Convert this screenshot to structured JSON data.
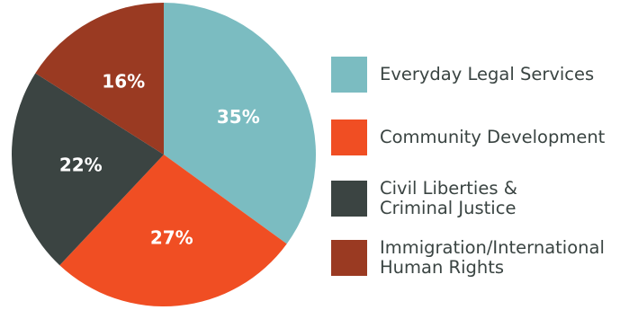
{
  "chart_data": {
    "type": "pie",
    "categories": [
      "Everyday Legal Services",
      "Community Development",
      "Civil Liberties &\nCriminal Justice",
      "Immigration/International\nHuman Rights"
    ],
    "values": [
      35,
      27,
      22,
      16
    ],
    "labels": [
      "35%",
      "27%",
      "22%",
      "16%"
    ],
    "colors": [
      "#7bbcc1",
      "#f04e23",
      "#3b4442",
      "#9a3a22"
    ],
    "legend": "right",
    "start_angle": "12 o'clock",
    "direction": "clockwise"
  }
}
